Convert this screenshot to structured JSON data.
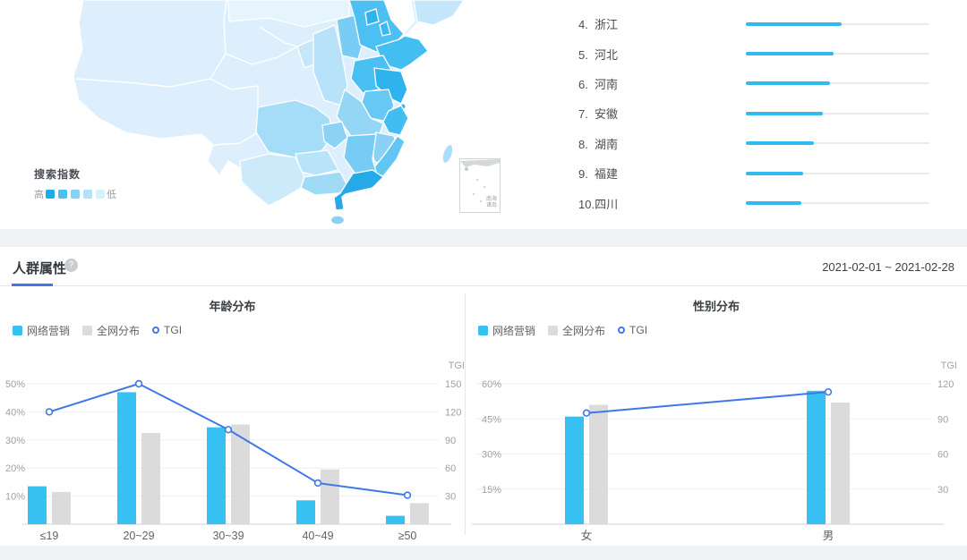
{
  "region": {
    "legend_title": "搜索指数",
    "legend_high": "高",
    "legend_low": "低",
    "legend_colors": [
      "#1fadea",
      "#4cc0f1",
      "#84d2f6",
      "#b0e2f9",
      "#d8effc"
    ],
    "inset_label": "南海诸岛",
    "list": [
      {
        "rank": "4.",
        "name": "浙江",
        "bar_percent": 52
      },
      {
        "rank": "5.",
        "name": "河北",
        "bar_percent": 48
      },
      {
        "rank": "6.",
        "name": "河南",
        "bar_percent": 46
      },
      {
        "rank": "7.",
        "name": "安徽",
        "bar_percent": 42
      },
      {
        "rank": "8.",
        "name": "湖南",
        "bar_percent": 37
      },
      {
        "rank": "9.",
        "name": "福建",
        "bar_percent": 31
      },
      {
        "rank": "10.",
        "name": "四川",
        "bar_percent": 30
      }
    ]
  },
  "demographics": {
    "section_title": "人群属性",
    "help_icon": "?",
    "date_range": "2021-02-01 ~ 2021-02-28"
  },
  "chart_data": [
    {
      "type": "bar+line",
      "title": "年龄分布",
      "categories": [
        "≤19",
        "20~29",
        "30~39",
        "40~49",
        "≥50"
      ],
      "series": [
        {
          "name": "网络营销",
          "type": "bar",
          "axis": "left",
          "values": [
            13.5,
            47,
            34.5,
            8.5,
            3
          ]
        },
        {
          "name": "全网分布",
          "type": "bar",
          "axis": "left",
          "values": [
            11.5,
            32.5,
            35.5,
            19.5,
            7.5
          ]
        },
        {
          "name": "TGI",
          "type": "line",
          "axis": "right",
          "values": [
            120,
            150,
            101,
            44,
            31
          ]
        }
      ],
      "left_axis": {
        "unit": "%",
        "ticks": [
          10,
          20,
          30,
          40,
          50
        ],
        "max": 50
      },
      "right_axis": {
        "label": "TGI",
        "ticks": [
          30,
          60,
          90,
          120,
          150
        ],
        "max": 150
      },
      "legend_position": "top-left",
      "grid": true
    },
    {
      "type": "bar+line",
      "title": "性别分布",
      "categories": [
        "女",
        "男"
      ],
      "series": [
        {
          "name": "网络营销",
          "type": "bar",
          "axis": "left",
          "values": [
            46,
            57
          ]
        },
        {
          "name": "全网分布",
          "type": "bar",
          "axis": "left",
          "values": [
            51,
            52
          ]
        },
        {
          "name": "TGI",
          "type": "line",
          "axis": "right",
          "values": [
            95,
            113
          ]
        }
      ],
      "left_axis": {
        "unit": "%",
        "ticks": [
          15,
          30,
          45,
          60
        ],
        "max": 60
      },
      "right_axis": {
        "label": "TGI",
        "ticks": [
          30,
          60,
          90,
          120
        ],
        "max": 120
      },
      "legend_position": "top-left",
      "grid": true
    }
  ],
  "colors": {
    "bar_blue": "#37c0f2",
    "bar_gray": "#dbdbdb",
    "line_blue": "#3e78e8",
    "rank_bar": "#30baf0",
    "rank_track": "#eaeaea",
    "axis_text": "#9aa2ab",
    "cat_text": "#5f6368",
    "grid": "#efefef",
    "axis_line": "#cfd2d6",
    "accent_blue": "#3e78e8",
    "map_darkest": "#25a9e9"
  }
}
